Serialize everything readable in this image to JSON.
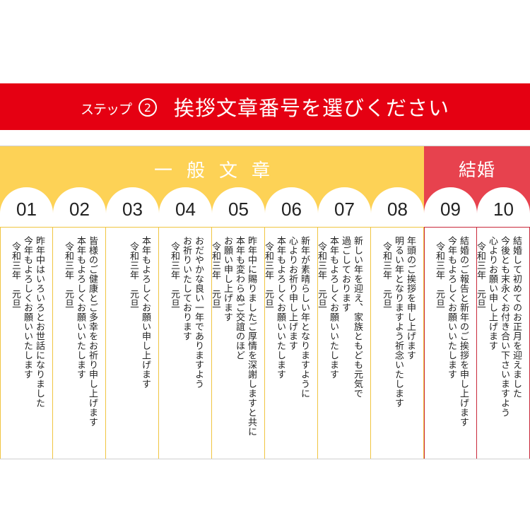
{
  "header": {
    "step_label": "ステップ",
    "step_number": "2",
    "title": "挨拶文章番号を選びください"
  },
  "categories": {
    "general": {
      "label": "一般文章",
      "color": "#fdd256"
    },
    "wedding": {
      "label": "結婚",
      "color": "#e7424e"
    }
  },
  "colors": {
    "banner": "#e50012",
    "general_line": "#f0c541",
    "wedding_line": "#c9283a"
  },
  "options": [
    {
      "number": "01",
      "category": "general",
      "lines": [
        "昨年中はいろいろとお世話になりました",
        "今年もよろしくお願いいたします"
      ],
      "date": "令和三年　元旦"
    },
    {
      "number": "02",
      "category": "general",
      "lines": [
        "皆様のご健康とご多幸をお祈り申し上げます",
        "本年もよろしくお願いいたします"
      ],
      "date": "令和三年　元旦"
    },
    {
      "number": "03",
      "category": "general",
      "lines": [
        "本年もよろしくお願い申し上げます"
      ],
      "date": "令和三年　元旦"
    },
    {
      "number": "04",
      "category": "general",
      "lines": [
        "おだやかな良い一年でありますよう",
        "お祈りいたしております"
      ],
      "date": "令和三年　元旦"
    },
    {
      "number": "05",
      "category": "general",
      "lines": [
        "昨年中に賜りましたご厚情を深謝しますと共に",
        "本年も変わらぬご交誼のほど",
        "お願い申し上げます"
      ],
      "date": "令和三年　元旦"
    },
    {
      "number": "06",
      "category": "general",
      "lines": [
        "新年が素晴らしい年となりますように",
        "心よりお祈り申し上げます",
        "本年もよろしくお願いいたします"
      ],
      "date": "令和三年　元旦"
    },
    {
      "number": "07",
      "category": "general",
      "lines": [
        "新しい年を迎え、家族ともども元気で",
        "過ごしております",
        "本年もよろしくお願いいたします"
      ],
      "date": "令和三年　元旦"
    },
    {
      "number": "08",
      "category": "general",
      "lines": [
        "年頭のご挨拶を申し上げます",
        "明るい年となりますよう祈念いたします"
      ],
      "date": "令和三年　元旦"
    },
    {
      "number": "09",
      "category": "wedding",
      "lines": [
        "結婚のご報告と新年のご挨拶を申し上げます",
        "今年もよろしくお願いいたします"
      ],
      "date": "令和三年　元旦"
    },
    {
      "number": "10",
      "category": "wedding",
      "lines": [
        "結婚して初めてのお正月を迎えました",
        "今後とも末永くお付き合い下さいますよう",
        "心よりお願い申し上げます"
      ],
      "date": "令和三年　元旦"
    }
  ]
}
